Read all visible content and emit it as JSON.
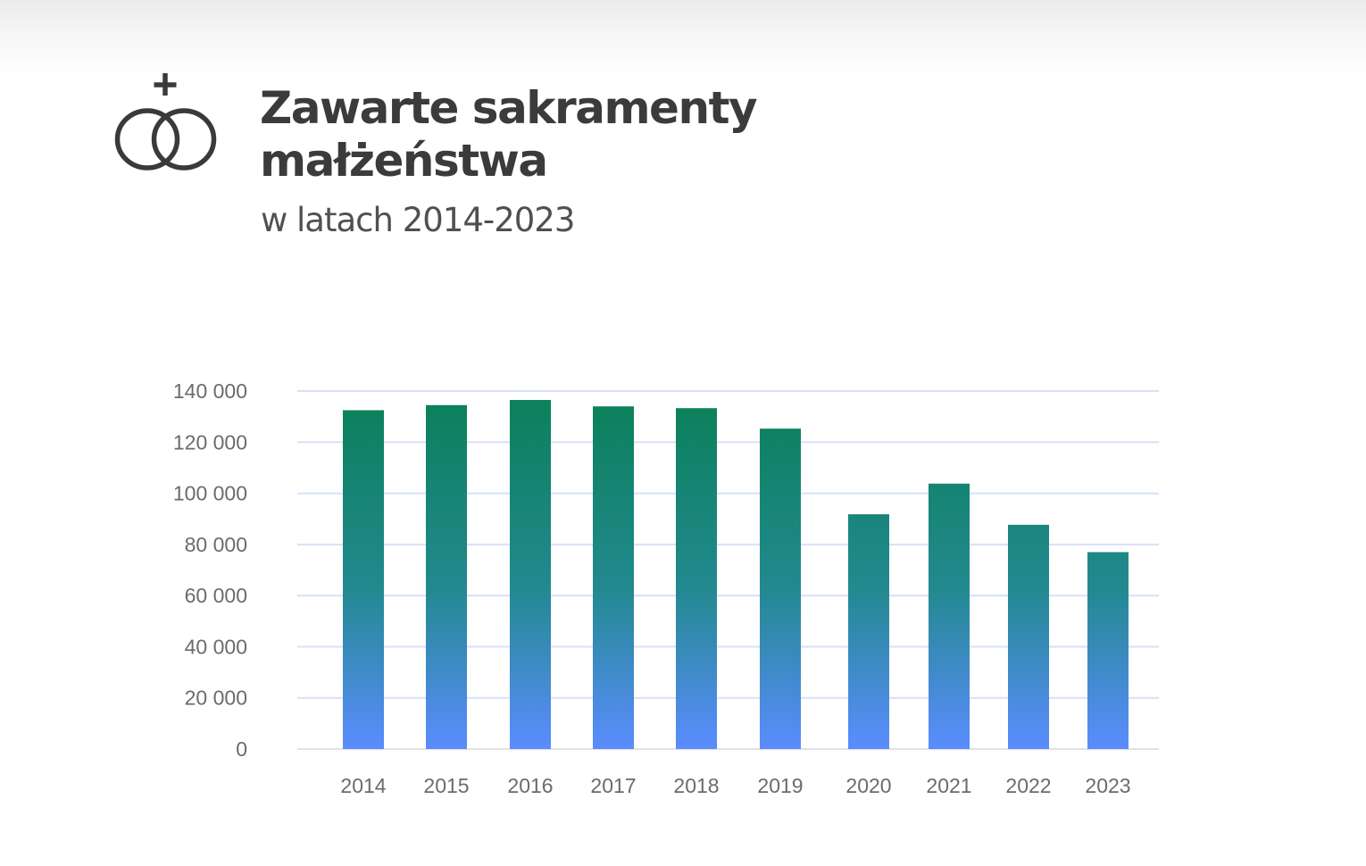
{
  "header": {
    "icon": "wedding-rings-cross-icon",
    "title_line1": "Zawarte sakramenty",
    "title_line2": "małżeństwa",
    "subtitle": "w latach 2014-2023"
  },
  "colors": {
    "title": "#3b3b3b",
    "bar_top": "#0a8057",
    "bar_bottom": "#5b8cff",
    "gridline": "#d6e0fb",
    "baseline": "#e2e2e2",
    "tick_text": "#6b6b6b"
  },
  "chart_data": {
    "type": "bar",
    "categories": [
      "2014",
      "2015",
      "2016",
      "2017",
      "2018",
      "2019",
      "2020",
      "2021",
      "2022",
      "2023"
    ],
    "values": [
      132500,
      134500,
      136500,
      134000,
      133300,
      125300,
      91800,
      103800,
      87700,
      77000
    ],
    "ylim": [
      0,
      140000
    ],
    "yticks": [
      0,
      20000,
      40000,
      60000,
      80000,
      100000,
      120000,
      140000
    ],
    "ytick_labels": [
      "0",
      "20 000",
      "40 000",
      "60 000",
      "80 000",
      "100 000",
      "120 000",
      "140 000"
    ],
    "grid": true,
    "legend": "none",
    "title": "",
    "xlabel": "",
    "ylabel": ""
  }
}
